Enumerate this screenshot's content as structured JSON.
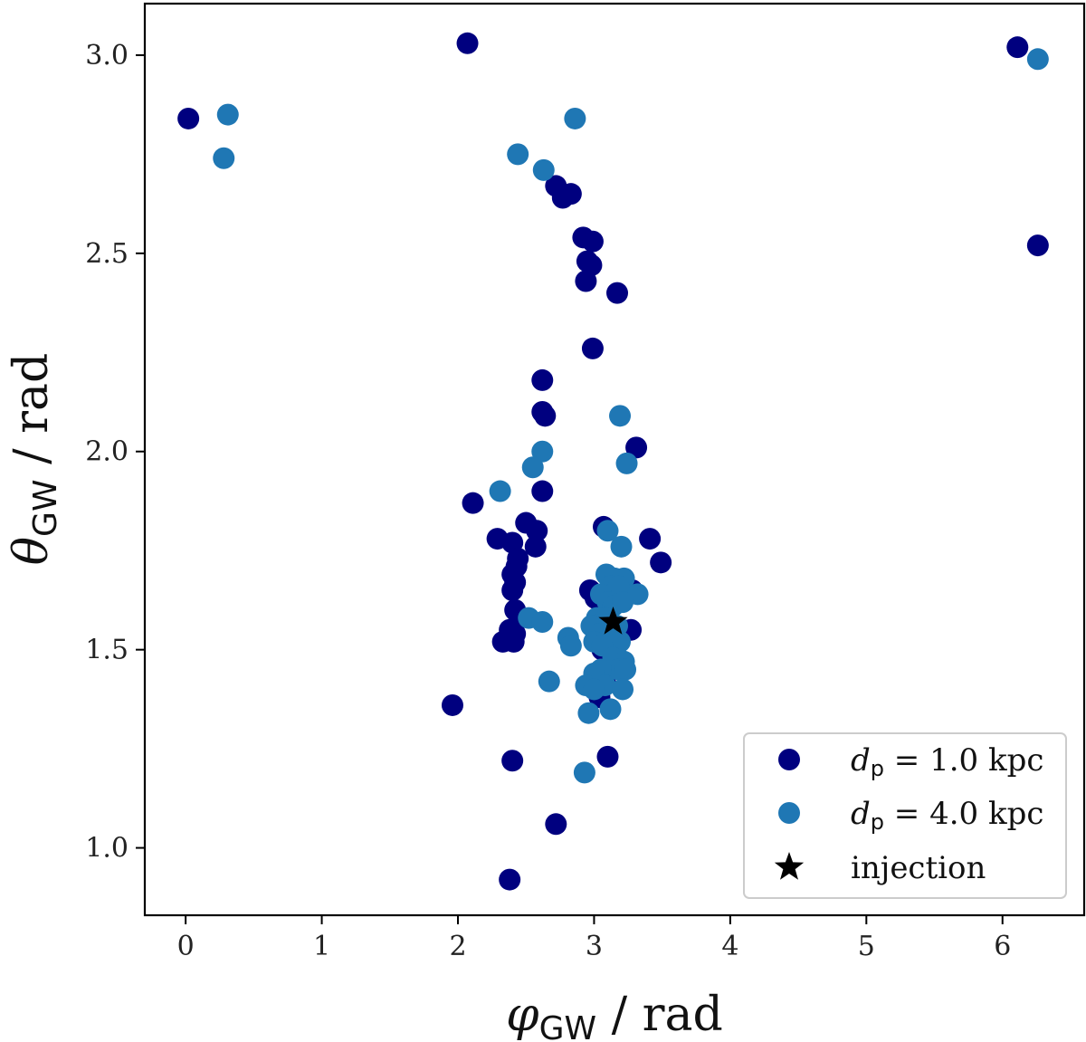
{
  "chart_data": {
    "type": "scatter",
    "title": "",
    "xlabel": {
      "symbol": "φ",
      "subscript": "GW",
      "unit": " / rad"
    },
    "ylabel": {
      "symbol": "θ",
      "subscript": "GW",
      "unit": " / rad"
    },
    "xlim": [
      -0.3,
      6.6
    ],
    "ylim": [
      0.83,
      3.13
    ],
    "xticks": [
      0,
      1,
      2,
      3,
      4,
      5,
      6
    ],
    "yticks": [
      1.0,
      1.5,
      2.0,
      2.5,
      3.0
    ],
    "xtick_labels": [
      "0",
      "1",
      "2",
      "3",
      "4",
      "5",
      "6"
    ],
    "ytick_labels": [
      "1.0",
      "1.5",
      "2.0",
      "2.5",
      "3.0"
    ],
    "grid": false,
    "legend_position": "bottom-right",
    "series": [
      {
        "name": "d_p = 1.0 kpc",
        "legend": {
          "symbol": "d",
          "subscript": "p",
          "rest": " = 1.0 kpc"
        },
        "color": "#00007f",
        "marker": "circle",
        "points": [
          [
            0.02,
            2.84
          ],
          [
            2.07,
            3.03
          ],
          [
            6.11,
            3.02
          ],
          [
            6.26,
            2.52
          ],
          [
            2.72,
            2.67
          ],
          [
            2.77,
            2.64
          ],
          [
            2.83,
            2.65
          ],
          [
            2.92,
            2.54
          ],
          [
            2.99,
            2.53
          ],
          [
            2.95,
            2.48
          ],
          [
            2.98,
            2.47
          ],
          [
            2.94,
            2.43
          ],
          [
            3.17,
            2.4
          ],
          [
            2.99,
            2.26
          ],
          [
            2.62,
            2.18
          ],
          [
            2.62,
            2.1
          ],
          [
            2.64,
            2.09
          ],
          [
            3.31,
            2.01
          ],
          [
            2.11,
            1.87
          ],
          [
            2.62,
            1.9
          ],
          [
            2.5,
            1.82
          ],
          [
            2.58,
            1.8
          ],
          [
            3.07,
            1.81
          ],
          [
            2.29,
            1.78
          ],
          [
            2.4,
            1.77
          ],
          [
            2.57,
            1.76
          ],
          [
            3.41,
            1.78
          ],
          [
            3.49,
            1.72
          ],
          [
            2.44,
            1.73
          ],
          [
            2.43,
            1.71
          ],
          [
            2.4,
            1.69
          ],
          [
            2.42,
            1.67
          ],
          [
            2.4,
            1.65
          ],
          [
            2.97,
            1.65
          ],
          [
            3.01,
            1.63
          ],
          [
            3.28,
            1.65
          ],
          [
            2.42,
            1.6
          ],
          [
            2.45,
            1.58
          ],
          [
            2.38,
            1.55
          ],
          [
            2.42,
            1.54
          ],
          [
            2.38,
            1.53
          ],
          [
            2.33,
            1.52
          ],
          [
            2.41,
            1.52
          ],
          [
            3.27,
            1.55
          ],
          [
            3.06,
            1.5
          ],
          [
            3.12,
            1.47
          ],
          [
            3.08,
            1.42
          ],
          [
            3.01,
            1.4
          ],
          [
            3.04,
            1.38
          ],
          [
            1.96,
            1.36
          ],
          [
            2.4,
            1.22
          ],
          [
            3.1,
            1.23
          ],
          [
            2.72,
            1.06
          ],
          [
            2.38,
            0.92
          ]
        ]
      },
      {
        "name": "d_p = 4.0 kpc",
        "legend": {
          "symbol": "d",
          "subscript": "p",
          "rest": " = 4.0 kpc"
        },
        "color": "#1f77b4",
        "marker": "circle",
        "points": [
          [
            0.31,
            2.85
          ],
          [
            0.28,
            2.74
          ],
          [
            6.26,
            2.99
          ],
          [
            2.86,
            2.84
          ],
          [
            2.44,
            2.75
          ],
          [
            2.63,
            2.71
          ],
          [
            3.19,
            2.09
          ],
          [
            2.62,
            2.0
          ],
          [
            2.55,
            1.96
          ],
          [
            3.24,
            1.97
          ],
          [
            2.31,
            1.9
          ],
          [
            3.1,
            1.8
          ],
          [
            3.2,
            1.76
          ],
          [
            3.09,
            1.69
          ],
          [
            3.15,
            1.68
          ],
          [
            3.22,
            1.68
          ],
          [
            3.12,
            1.66
          ],
          [
            3.18,
            1.66
          ],
          [
            3.32,
            1.64
          ],
          [
            3.05,
            1.64
          ],
          [
            3.1,
            1.62
          ],
          [
            3.14,
            1.61
          ],
          [
            3.21,
            1.62
          ],
          [
            3.02,
            1.58
          ],
          [
            3.08,
            1.58
          ],
          [
            2.52,
            1.58
          ],
          [
            2.62,
            1.57
          ],
          [
            2.98,
            1.56
          ],
          [
            3.17,
            1.56
          ],
          [
            3.04,
            1.54
          ],
          [
            3.1,
            1.53
          ],
          [
            3.13,
            1.5
          ],
          [
            3.19,
            1.52
          ],
          [
            3.0,
            1.52
          ],
          [
            3.06,
            1.51
          ],
          [
            2.81,
            1.53
          ],
          [
            2.83,
            1.51
          ],
          [
            3.14,
            1.48
          ],
          [
            3.22,
            1.47
          ],
          [
            3.18,
            1.45
          ],
          [
            3.23,
            1.45
          ],
          [
            3.05,
            1.45
          ],
          [
            3.0,
            1.44
          ],
          [
            3.08,
            1.41
          ],
          [
            2.94,
            1.41
          ],
          [
            3.0,
            1.4
          ],
          [
            3.21,
            1.4
          ],
          [
            2.67,
            1.42
          ],
          [
            2.96,
            1.34
          ],
          [
            3.12,
            1.35
          ],
          [
            2.93,
            1.19
          ]
        ]
      },
      {
        "name": "injection",
        "legend": {
          "symbol": "",
          "subscript": "",
          "rest": "injection"
        },
        "color": "#000000",
        "marker": "star",
        "points": [
          [
            3.14,
            1.57
          ]
        ]
      }
    ]
  }
}
